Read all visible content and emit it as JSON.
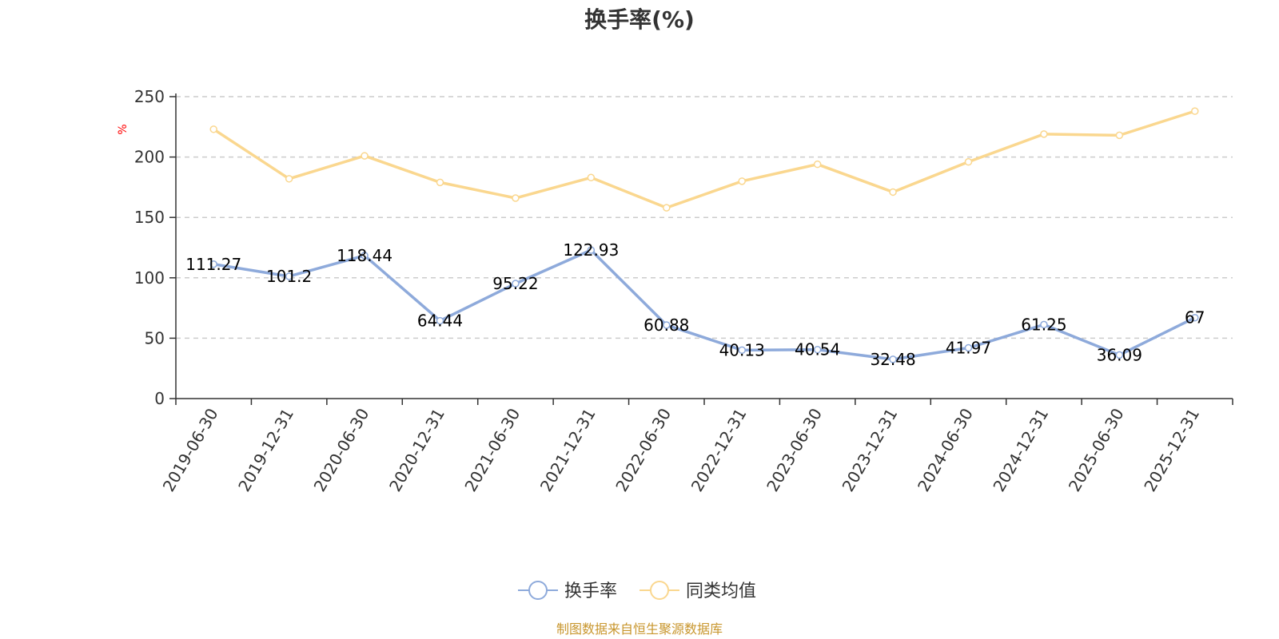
{
  "chart_data": {
    "type": "line",
    "title": "换手率(%)",
    "y_unit": "%",
    "ylim": [
      0,
      250
    ],
    "yticks": [
      0,
      50,
      100,
      150,
      200,
      250
    ],
    "grid": "horizontal-dashed",
    "legend_position": "bottom-center",
    "categories": [
      "2019-06-30",
      "2019-12-31",
      "2020-06-30",
      "2020-12-31",
      "2021-06-30",
      "2021-12-31",
      "2022-06-30",
      "2022-12-31",
      "2023-06-30",
      "2023-12-31",
      "2024-06-30",
      "2024-12-31",
      "2025-06-30",
      "2025-12-31"
    ],
    "series": [
      {
        "name": "换手率",
        "color": "#8eaadb",
        "values": [
          111.27,
          101.2,
          118.44,
          64.44,
          95.22,
          122.93,
          60.88,
          40.13,
          40.54,
          32.48,
          41.97,
          61.25,
          36.09,
          67
        ],
        "labels": [
          "111.27",
          "101.2",
          "118.44",
          "64.44",
          "95.22",
          "122.93",
          "60.88",
          "40.13",
          "40.54",
          "32.48",
          "41.97",
          "61.25",
          "36.09",
          "67"
        ]
      },
      {
        "name": "同类均值",
        "color": "#fad78f",
        "values": [
          223,
          182,
          201,
          179,
          166,
          183,
          158,
          180,
          194,
          171,
          196,
          219,
          218,
          238
        ]
      }
    ]
  },
  "source": "制图数据来自恒生聚源数据库"
}
